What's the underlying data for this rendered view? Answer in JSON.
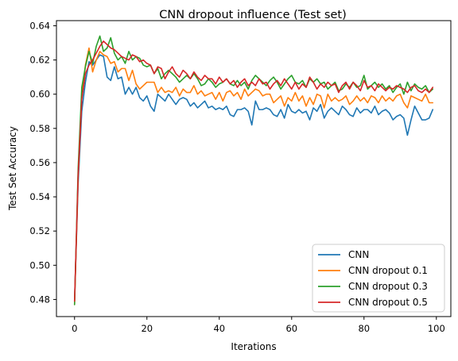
{
  "chart_data": {
    "type": "line",
    "title": "CNN dropout influence (Test set)",
    "xlabel": "Iterations",
    "ylabel": "Test Set Accuracy",
    "xlim": [
      -5,
      104
    ],
    "ylim": [
      0.47,
      0.643
    ],
    "xticks": [
      0,
      20,
      40,
      60,
      80,
      100
    ],
    "yticks": [
      0.48,
      0.5,
      0.52,
      0.54,
      0.56,
      0.58,
      0.6,
      0.62,
      0.64
    ],
    "ytick_labels": [
      "0.48",
      "0.50",
      "0.52",
      "0.54",
      "0.56",
      "0.58",
      "0.60",
      "0.62",
      "0.64"
    ],
    "grid": false,
    "legend_position": "bottom-right",
    "x": [
      0,
      1,
      2,
      3,
      4,
      5,
      6,
      7,
      8,
      9,
      10,
      11,
      12,
      13,
      14,
      15,
      16,
      17,
      18,
      19,
      20,
      21,
      22,
      23,
      24,
      25,
      26,
      27,
      28,
      29,
      30,
      31,
      32,
      33,
      34,
      35,
      36,
      37,
      38,
      39,
      40,
      41,
      42,
      43,
      44,
      45,
      46,
      47,
      48,
      49,
      50,
      51,
      52,
      53,
      54,
      55,
      56,
      57,
      58,
      59,
      60,
      61,
      62,
      63,
      64,
      65,
      66,
      67,
      68,
      69,
      70,
      71,
      72,
      73,
      74,
      75,
      76,
      77,
      78,
      79,
      80,
      81,
      82,
      83,
      84,
      85,
      86,
      87,
      88,
      89,
      90,
      91,
      92,
      93,
      94,
      95,
      96,
      97,
      98,
      99
    ],
    "series": [
      {
        "name": "CNN",
        "color": "#1f77b4",
        "values": [
          0.479,
          0.548,
          0.59,
          0.607,
          0.619,
          0.617,
          0.62,
          0.623,
          0.622,
          0.61,
          0.608,
          0.616,
          0.609,
          0.61,
          0.6,
          0.604,
          0.6,
          0.604,
          0.598,
          0.596,
          0.599,
          0.593,
          0.59,
          0.6,
          0.598,
          0.596,
          0.6,
          0.597,
          0.594,
          0.597,
          0.598,
          0.597,
          0.593,
          0.595,
          0.592,
          0.594,
          0.596,
          0.592,
          0.593,
          0.591,
          0.592,
          0.591,
          0.593,
          0.588,
          0.587,
          0.591,
          0.591,
          0.592,
          0.59,
          0.582,
          0.596,
          0.591,
          0.591,
          0.592,
          0.591,
          0.588,
          0.587,
          0.591,
          0.586,
          0.594,
          0.59,
          0.589,
          0.591,
          0.589,
          0.59,
          0.585,
          0.592,
          0.59,
          0.594,
          0.586,
          0.59,
          0.592,
          0.59,
          0.588,
          0.593,
          0.591,
          0.588,
          0.587,
          0.592,
          0.589,
          0.591,
          0.591,
          0.589,
          0.593,
          0.588,
          0.59,
          0.591,
          0.589,
          0.585,
          0.587,
          0.588,
          0.586,
          0.576,
          0.585,
          0.593,
          0.589,
          0.585,
          0.585,
          0.586,
          0.591
        ]
      },
      {
        "name": "CNN dropout 0.1",
        "color": "#ff7f0e",
        "values": [
          0.477,
          0.552,
          0.598,
          0.617,
          0.627,
          0.613,
          0.62,
          0.625,
          0.623,
          0.622,
          0.618,
          0.619,
          0.613,
          0.615,
          0.615,
          0.608,
          0.614,
          0.606,
          0.603,
          0.605,
          0.607,
          0.607,
          0.607,
          0.601,
          0.604,
          0.601,
          0.602,
          0.601,
          0.604,
          0.599,
          0.603,
          0.601,
          0.601,
          0.605,
          0.6,
          0.602,
          0.599,
          0.6,
          0.601,
          0.597,
          0.601,
          0.596,
          0.601,
          0.602,
          0.599,
          0.601,
          0.597,
          0.603,
          0.599,
          0.601,
          0.603,
          0.602,
          0.599,
          0.6,
          0.6,
          0.595,
          0.597,
          0.599,
          0.593,
          0.598,
          0.596,
          0.601,
          0.596,
          0.599,
          0.593,
          0.598,
          0.594,
          0.6,
          0.599,
          0.592,
          0.6,
          0.596,
          0.598,
          0.596,
          0.597,
          0.599,
          0.594,
          0.596,
          0.599,
          0.596,
          0.598,
          0.595,
          0.599,
          0.598,
          0.595,
          0.599,
          0.596,
          0.598,
          0.596,
          0.599,
          0.6,
          0.595,
          0.592,
          0.599,
          0.598,
          0.597,
          0.596,
          0.6,
          0.595,
          0.595
        ]
      },
      {
        "name": "CNN dropout 0.3",
        "color": "#2ca02c",
        "values": [
          0.477,
          0.557,
          0.604,
          0.616,
          0.625,
          0.618,
          0.628,
          0.634,
          0.625,
          0.627,
          0.633,
          0.624,
          0.62,
          0.622,
          0.618,
          0.625,
          0.62,
          0.622,
          0.621,
          0.617,
          0.616,
          0.617,
          0.612,
          0.615,
          0.609,
          0.612,
          0.614,
          0.612,
          0.61,
          0.607,
          0.609,
          0.611,
          0.609,
          0.612,
          0.609,
          0.605,
          0.606,
          0.609,
          0.607,
          0.604,
          0.606,
          0.607,
          0.609,
          0.606,
          0.605,
          0.608,
          0.605,
          0.607,
          0.603,
          0.608,
          0.611,
          0.609,
          0.607,
          0.605,
          0.608,
          0.61,
          0.607,
          0.603,
          0.606,
          0.609,
          0.611,
          0.607,
          0.606,
          0.608,
          0.604,
          0.609,
          0.607,
          0.609,
          0.606,
          0.607,
          0.603,
          0.605,
          0.607,
          0.602,
          0.603,
          0.606,
          0.604,
          0.607,
          0.604,
          0.605,
          0.611,
          0.603,
          0.605,
          0.607,
          0.604,
          0.606,
          0.603,
          0.605,
          0.601,
          0.604,
          0.606,
          0.6,
          0.607,
          0.602,
          0.606,
          0.604,
          0.603,
          0.605,
          0.601,
          0.603
        ]
      },
      {
        "name": "CNN dropout 0.5",
        "color": "#d62728",
        "values": [
          0.479,
          0.553,
          0.597,
          0.612,
          0.617,
          0.62,
          0.624,
          0.628,
          0.631,
          0.629,
          0.627,
          0.626,
          0.624,
          0.622,
          0.621,
          0.62,
          0.623,
          0.622,
          0.619,
          0.62,
          0.618,
          0.617,
          0.612,
          0.616,
          0.615,
          0.609,
          0.613,
          0.616,
          0.612,
          0.61,
          0.614,
          0.612,
          0.609,
          0.613,
          0.61,
          0.608,
          0.611,
          0.609,
          0.609,
          0.606,
          0.61,
          0.607,
          0.609,
          0.606,
          0.608,
          0.604,
          0.607,
          0.609,
          0.605,
          0.607,
          0.605,
          0.609,
          0.606,
          0.607,
          0.603,
          0.606,
          0.608,
          0.605,
          0.609,
          0.606,
          0.603,
          0.607,
          0.603,
          0.606,
          0.604,
          0.61,
          0.607,
          0.603,
          0.606,
          0.604,
          0.607,
          0.605,
          0.606,
          0.601,
          0.605,
          0.607,
          0.603,
          0.607,
          0.605,
          0.602,
          0.608,
          0.604,
          0.605,
          0.602,
          0.606,
          0.604,
          0.602,
          0.604,
          0.603,
          0.605,
          0.604,
          0.603,
          0.601,
          0.604,
          0.605,
          0.602,
          0.601,
          0.603,
          0.601,
          0.604
        ]
      }
    ]
  }
}
